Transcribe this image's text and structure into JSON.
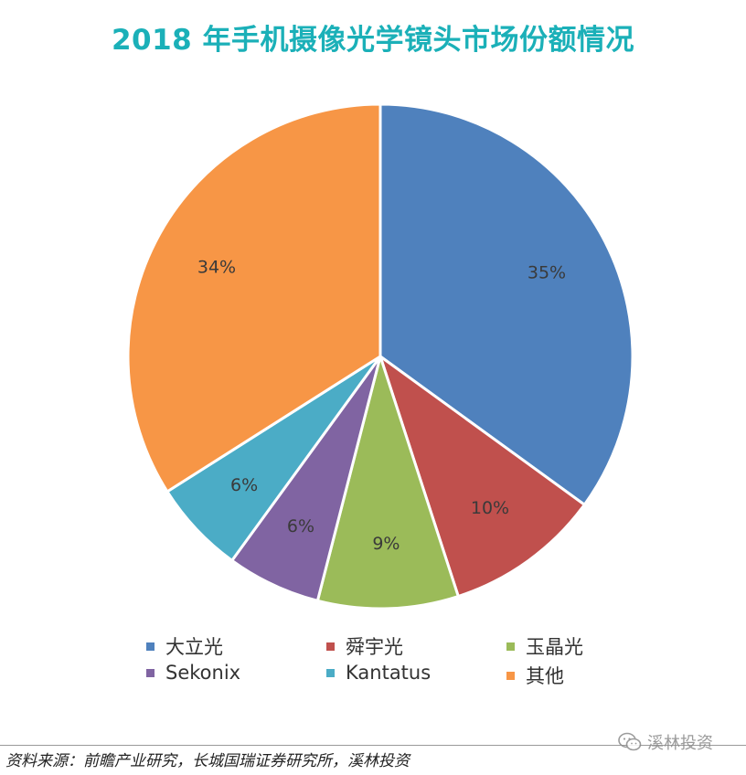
{
  "title": "2018 年手机摄像光学镜头市场份额情况",
  "chart_data": {
    "type": "pie",
    "title": "2018 年手机摄像光学镜头市场份额情况",
    "start": "12 o'clock",
    "direction": "clockwise",
    "legend_position": "bottom",
    "slices": [
      {
        "name": "大立光",
        "value": 35,
        "label": "35%",
        "color": "#4f81bd"
      },
      {
        "name": "舜宇光",
        "value": 10,
        "label": "10%",
        "color": "#c0504d"
      },
      {
        "name": "玉晶光",
        "value": 9,
        "label": "9%",
        "color": "#9bbb59"
      },
      {
        "name": "Sekonix",
        "value": 6,
        "label": "6%",
        "color": "#8064a2"
      },
      {
        "name": "Kantatus",
        "value": 6,
        "label": "6%",
        "color": "#4bacc6"
      },
      {
        "name": "其他",
        "value": 34,
        "label": "34%",
        "color": "#f79646"
      }
    ]
  },
  "source": "资料来源：前瞻产业研究，长城国瑞证券研究所，溪林投资",
  "watermark": {
    "text": "溪林投资",
    "icon": "wechat-icon"
  }
}
